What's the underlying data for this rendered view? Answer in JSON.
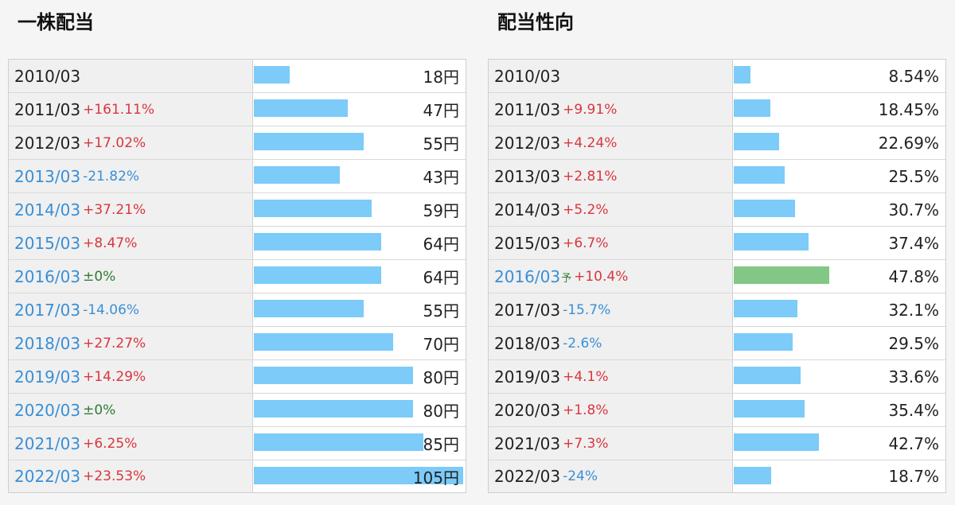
{
  "chart_data": [
    {
      "type": "bar",
      "title": "一株配当",
      "unit": "円",
      "ylim": [
        0,
        105
      ],
      "rows": [
        {
          "year": "2010/03",
          "change": "",
          "dir": "none",
          "value": 18,
          "label": "18円"
        },
        {
          "year": "2011/03",
          "change": "+161.11%",
          "dir": "up",
          "value": 47,
          "label": "47円"
        },
        {
          "year": "2012/03",
          "change": "+17.02%",
          "dir": "up",
          "value": 55,
          "label": "55円"
        },
        {
          "year": "2013/03",
          "change": "-21.82%",
          "dir": "down",
          "value": 43,
          "label": "43円",
          "yearBlue": true
        },
        {
          "year": "2014/03",
          "change": "+37.21%",
          "dir": "up",
          "value": 59,
          "label": "59円",
          "yearBlue": true
        },
        {
          "year": "2015/03",
          "change": "+8.47%",
          "dir": "up",
          "value": 64,
          "label": "64円",
          "yearBlue": true
        },
        {
          "year": "2016/03",
          "change": "±0%",
          "dir": "zero",
          "value": 64,
          "label": "64円",
          "yearBlue": true
        },
        {
          "year": "2017/03",
          "change": "-14.06%",
          "dir": "down",
          "value": 55,
          "label": "55円",
          "yearBlue": true
        },
        {
          "year": "2018/03",
          "change": "+27.27%",
          "dir": "up",
          "value": 70,
          "label": "70円",
          "yearBlue": true
        },
        {
          "year": "2019/03",
          "change": "+14.29%",
          "dir": "up",
          "value": 80,
          "label": "80円",
          "yearBlue": true
        },
        {
          "year": "2020/03",
          "change": "±0%",
          "dir": "zero",
          "value": 80,
          "label": "80円",
          "yearBlue": true
        },
        {
          "year": "2021/03",
          "change": "+6.25%",
          "dir": "up",
          "value": 85,
          "label": "85円",
          "yearBlue": true
        },
        {
          "year": "2022/03",
          "change": "+23.53%",
          "dir": "up",
          "value": 105,
          "label": "105円",
          "yearBlue": true
        }
      ]
    },
    {
      "type": "bar",
      "title": "配当性向",
      "unit": "%",
      "ylim": [
        0,
        105
      ],
      "rows": [
        {
          "year": "2010/03",
          "change": "",
          "dir": "none",
          "value": 8.54,
          "label": "8.54%"
        },
        {
          "year": "2011/03",
          "change": "+9.91%",
          "dir": "up",
          "value": 18.45,
          "label": "18.45%"
        },
        {
          "year": "2012/03",
          "change": "+4.24%",
          "dir": "up",
          "value": 22.69,
          "label": "22.69%"
        },
        {
          "year": "2013/03",
          "change": "+2.81%",
          "dir": "up",
          "value": 25.5,
          "label": "25.5%"
        },
        {
          "year": "2014/03",
          "change": "+5.2%",
          "dir": "up",
          "value": 30.7,
          "label": "30.7%"
        },
        {
          "year": "2015/03",
          "change": "+6.7%",
          "dir": "up",
          "value": 37.4,
          "label": "37.4%"
        },
        {
          "year": "2016/03",
          "mark": "予",
          "change": "+10.4%",
          "dir": "up",
          "value": 47.8,
          "label": "47.8%",
          "yearBlue": true,
          "forecast": true
        },
        {
          "year": "2017/03",
          "change": "-15.7%",
          "dir": "down",
          "value": 32.1,
          "label": "32.1%"
        },
        {
          "year": "2018/03",
          "change": "-2.6%",
          "dir": "down",
          "value": 29.5,
          "label": "29.5%"
        },
        {
          "year": "2019/03",
          "change": "+4.1%",
          "dir": "up",
          "value": 33.6,
          "label": "33.6%"
        },
        {
          "year": "2020/03",
          "change": "+1.8%",
          "dir": "up",
          "value": 35.4,
          "label": "35.4%"
        },
        {
          "year": "2021/03",
          "change": "+7.3%",
          "dir": "up",
          "value": 42.7,
          "label": "42.7%"
        },
        {
          "year": "2022/03",
          "change": "-24%",
          "dir": "down",
          "value": 18.7,
          "label": "18.7%"
        }
      ]
    }
  ],
  "colors": {
    "bar": "#7ccbf8",
    "forecast_bar": "#82c785",
    "up": "#d9363e",
    "down": "#3a8fd6",
    "zero": "#2e7d32"
  }
}
